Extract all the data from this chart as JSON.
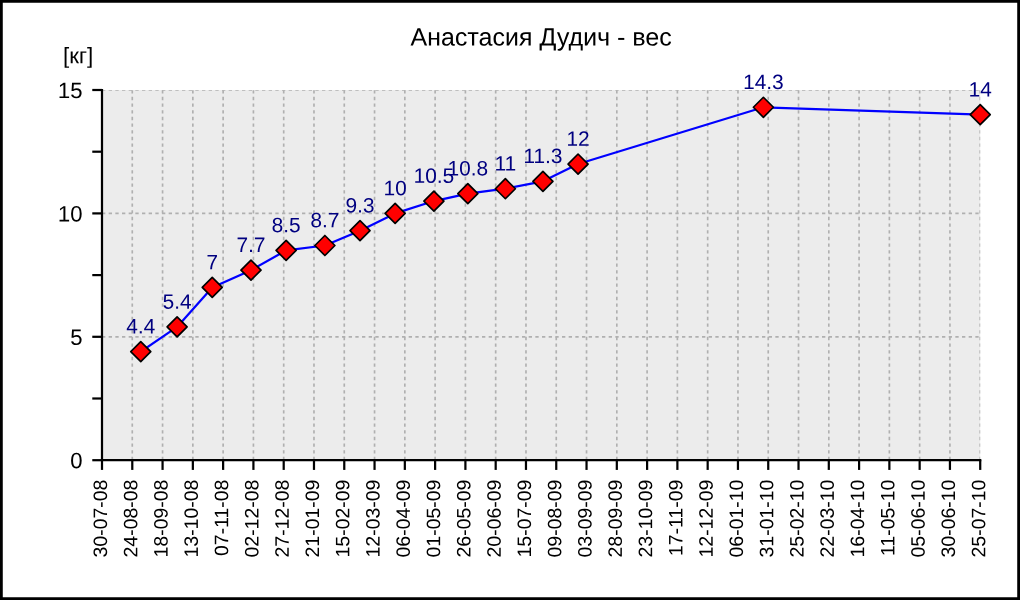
{
  "chart_data": {
    "type": "line",
    "title": "Анастасия Дудич - вес",
    "ylabel": "[кг]",
    "x": [
      "2008-08-31",
      "2008-09-30",
      "2008-10-29",
      "2008-11-30",
      "2008-12-29",
      "2009-01-30",
      "2009-02-28",
      "2009-03-29",
      "2009-04-30",
      "2009-05-28",
      "2009-06-28",
      "2009-07-29",
      "2009-08-27",
      "2010-01-27",
      "2010-07-25"
    ],
    "series": [
      {
        "color": "#0000ff",
        "colors": [
          "#ff0000",
          "#ff0000",
          "#ff0000",
          "#ff0000",
          "#ff0000",
          "#ff0000",
          "#ff0000",
          "#ff0000",
          "#ff0000",
          "#ff0000",
          "#ff0000",
          "#ff0000",
          "#ff0000",
          "#ff0000",
          "#ff0000"
        ],
        "values": [
          4.4,
          5.4,
          7,
          7.7,
          8.5,
          8.7,
          9.3,
          10,
          10.5,
          10.8,
          11,
          11.3,
          12,
          14.3,
          14
        ]
      }
    ],
    "data_labels": true,
    "marker": "diamond",
    "line_style": "solid",
    "grid": true,
    "xlim": [
      "2008-07-30",
      "2010-07-25"
    ],
    "xticks": [
      {
        "value": "2008-07-30",
        "label": "30-07-08"
      },
      {
        "value": "2008-08-24",
        "label": "24-08-08"
      },
      {
        "value": "2008-09-18",
        "label": "18-09-08"
      },
      {
        "value": "2008-10-13",
        "label": "13-10-08"
      },
      {
        "value": "2008-11-07",
        "label": "07-11-08"
      },
      {
        "value": "2008-12-02",
        "label": "02-12-08"
      },
      {
        "value": "2008-12-27",
        "label": "27-12-08"
      },
      {
        "value": "2009-01-21",
        "label": "21-01-09"
      },
      {
        "value": "2009-02-15",
        "label": "15-02-09"
      },
      {
        "value": "2009-03-12",
        "label": "12-03-09"
      },
      {
        "value": "2009-04-06",
        "label": "06-04-09"
      },
      {
        "value": "2009-05-01",
        "label": "01-05-09"
      },
      {
        "value": "2009-05-26",
        "label": "26-05-09"
      },
      {
        "value": "2009-06-20",
        "label": "20-06-09"
      },
      {
        "value": "2009-07-15",
        "label": "15-07-09"
      },
      {
        "value": "2009-08-09",
        "label": "09-08-09"
      },
      {
        "value": "2009-09-03",
        "label": "03-09-09"
      },
      {
        "value": "2009-09-28",
        "label": "28-09-09"
      },
      {
        "value": "2009-10-23",
        "label": "23-10-09"
      },
      {
        "value": "2009-11-17",
        "label": "17-11-09"
      },
      {
        "value": "2009-12-12",
        "label": "12-12-09"
      },
      {
        "value": "2010-01-06",
        "label": "06-01-10"
      },
      {
        "value": "2010-01-31",
        "label": "31-01-10"
      },
      {
        "value": "2010-02-25",
        "label": "25-02-10"
      },
      {
        "value": "2010-03-22",
        "label": "22-03-10"
      },
      {
        "value": "2010-04-16",
        "label": "16-04-10"
      },
      {
        "value": "2010-05-11",
        "label": "11-05-10"
      },
      {
        "value": "2010-06-05",
        "label": "05-06-10"
      },
      {
        "value": "2010-06-30",
        "label": "30-06-10"
      },
      {
        "value": "2010-07-25",
        "label": "25-07-10"
      }
    ],
    "ylim": [
      0,
      15
    ],
    "yticks": [
      0,
      {
        "value": 2.5,
        "label": null
      },
      5,
      {
        "value": 7.5,
        "label": null
      },
      10,
      {
        "value": 12.5,
        "label": null
      },
      15
    ]
  }
}
